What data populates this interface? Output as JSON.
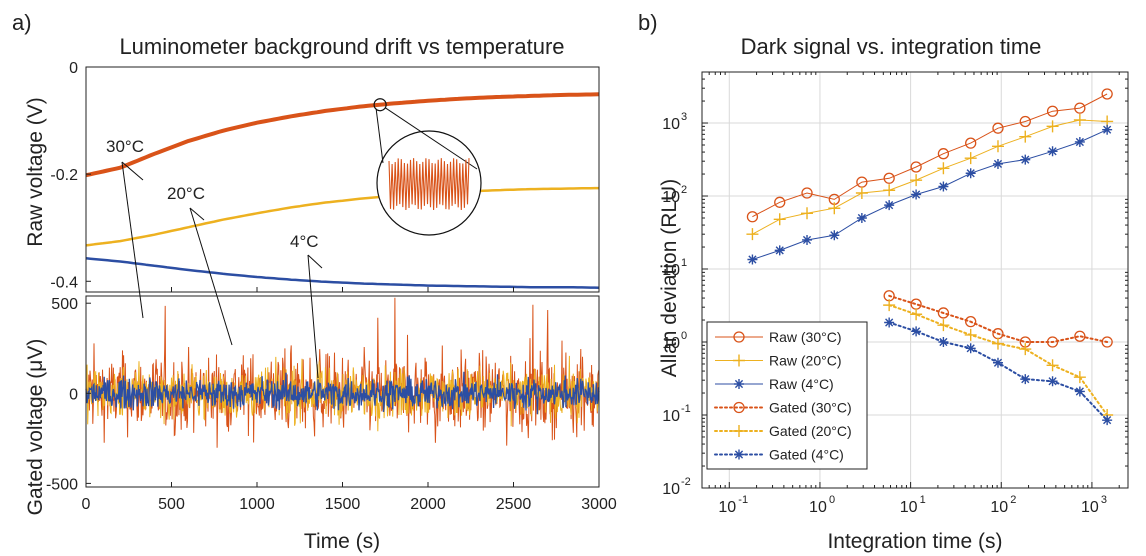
{
  "colors": {
    "c30": "#d95319",
    "c20": "#edb120",
    "c4": "#2c4ea3"
  },
  "panel_a": {
    "label": "a)",
    "title": "Luminometer background drift vs temperature"
  },
  "panel_b": {
    "label": "b)",
    "title": "Dark signal vs. integration time"
  },
  "chart_data": [
    {
      "type": "line",
      "title": "Luminometer background drift vs temperature",
      "xlabel": "",
      "ylabel": "Raw voltage (V)",
      "xlim": [
        0,
        3000
      ],
      "ylim": [
        -0.42,
        0
      ],
      "yticks": [
        0,
        -0.2,
        -0.4
      ],
      "grid": false,
      "x": [
        0,
        200,
        400,
        600,
        800,
        1000,
        1200,
        1400,
        1600,
        1800,
        2000,
        2200,
        2400,
        2600,
        2800,
        3000
      ],
      "series": [
        {
          "name": "30°C",
          "color": "#d95319",
          "values": [
            -0.202,
            -0.188,
            -0.162,
            -0.138,
            -0.119,
            -0.104,
            -0.092,
            -0.082,
            -0.074,
            -0.068,
            -0.063,
            -0.059,
            -0.056,
            -0.054,
            -0.052,
            -0.051
          ]
        },
        {
          "name": "20°C",
          "color": "#edb120",
          "values": [
            -0.333,
            -0.325,
            -0.313,
            -0.299,
            -0.285,
            -0.273,
            -0.262,
            -0.253,
            -0.246,
            -0.24,
            -0.236,
            -0.233,
            -0.23,
            -0.228,
            -0.227,
            -0.226
          ]
        },
        {
          "name": "4°C",
          "color": "#2c4ea3",
          "values": [
            -0.357,
            -0.363,
            -0.371,
            -0.379,
            -0.386,
            -0.392,
            -0.397,
            -0.401,
            -0.404,
            -0.406,
            -0.408,
            -0.409,
            -0.41,
            -0.411,
            -0.411,
            -0.412
          ]
        }
      ],
      "annotations": [
        "30°C",
        "20°C",
        "4°C"
      ]
    },
    {
      "type": "line",
      "xlabel": "Time (s)",
      "ylabel": "Gated voltage (μV)",
      "xlim": [
        0,
        3000
      ],
      "ylim": [
        -520,
        540
      ],
      "xticks": [
        0,
        500,
        1000,
        1500,
        2000,
        2500,
        3000
      ],
      "yticks": [
        500,
        0,
        -500
      ],
      "grid": false,
      "series": [
        {
          "name": "30°C",
          "color": "#d95319",
          "amplitude": 150
        },
        {
          "name": "20°C",
          "color": "#edb120",
          "amplitude": 100
        },
        {
          "name": "4°C",
          "color": "#2c4ea3",
          "amplitude": 60
        }
      ]
    },
    {
      "type": "line",
      "title": "Dark signal vs. integration time",
      "xlabel": "Integration time (s)",
      "ylabel": "Allan deviation (RLU)",
      "xscale": "log",
      "yscale": "log",
      "xlim": [
        0.05,
        2500
      ],
      "ylim": [
        0.01,
        5000
      ],
      "xticks": [
        "10^-1",
        "10^0",
        "10^1",
        "10^2",
        "10^3"
      ],
      "yticks": [
        "10^-2",
        "10^-1",
        "10^0",
        "10^1",
        "10^2",
        "10^3"
      ],
      "grid": true,
      "legend": "bottom-left",
      "series": [
        {
          "name": "Raw (30°C)",
          "color": "#d95319",
          "marker": "circle",
          "line": "solid",
          "x": [
            0.18,
            0.36,
            0.72,
            1.44,
            2.9,
            5.8,
            11.5,
            23,
            46,
            92,
            184,
            368,
            736,
            1472
          ],
          "y": [
            52,
            82,
            110,
            90,
            155,
            175,
            250,
            380,
            530,
            850,
            1050,
            1450,
            1600,
            2500
          ]
        },
        {
          "name": "Raw (20°C)",
          "color": "#edb120",
          "marker": "plus",
          "line": "solid",
          "x": [
            0.18,
            0.36,
            0.72,
            1.44,
            2.9,
            5.8,
            11.5,
            23,
            46,
            92,
            184,
            368,
            736,
            1472
          ],
          "y": [
            30,
            48,
            58,
            68,
            110,
            120,
            165,
            240,
            330,
            480,
            650,
            900,
            1100,
            1050
          ]
        },
        {
          "name": "Raw (4°C)",
          "color": "#2c4ea3",
          "marker": "asterisk",
          "line": "solid",
          "x": [
            0.18,
            0.36,
            0.72,
            1.44,
            2.9,
            5.8,
            11.5,
            23,
            46,
            92,
            184,
            368,
            736,
            1472
          ],
          "y": [
            13.5,
            18,
            25,
            29,
            50,
            75,
            105,
            135,
            205,
            275,
            315,
            410,
            550,
            810
          ]
        },
        {
          "name": "Gated (30°C)",
          "color": "#d95319",
          "marker": "circle",
          "line": "dotted",
          "x": [
            5.8,
            11.5,
            23,
            46,
            92,
            184,
            368,
            736,
            1472
          ],
          "y": [
            4.3,
            3.3,
            2.5,
            1.9,
            1.3,
            1.0,
            1.0,
            1.2,
            1.0
          ]
        },
        {
          "name": "Gated (20°C)",
          "color": "#edb120",
          "marker": "plus",
          "line": "dotted",
          "x": [
            5.8,
            11.5,
            23,
            46,
            92,
            184,
            368,
            736,
            1472
          ],
          "y": [
            3.2,
            2.4,
            1.7,
            1.25,
            0.95,
            0.8,
            0.48,
            0.33,
            0.1
          ]
        },
        {
          "name": "Gated (4°C)",
          "color": "#2c4ea3",
          "marker": "asterisk",
          "line": "dotted",
          "x": [
            5.8,
            11.5,
            23,
            46,
            92,
            184,
            368,
            736,
            1472
          ],
          "y": [
            1.85,
            1.4,
            1.0,
            0.82,
            0.52,
            0.31,
            0.29,
            0.21,
            0.085
          ]
        }
      ]
    }
  ]
}
